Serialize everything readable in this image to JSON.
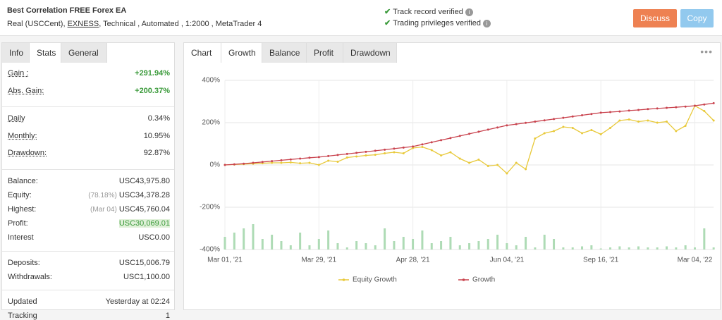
{
  "header": {
    "title": "Best Correlation FREE Forex EA",
    "subtitle_parts": [
      "Real (USCCent),",
      "EXNESS",
      ", Technical , Automated , 1:2000 , MetaTrader 4"
    ],
    "verified": [
      "Track record verified",
      "Trading privileges verified"
    ],
    "buttons": [
      "Discuss",
      "Copy"
    ]
  },
  "stats_tabs": [
    "Info",
    "Stats",
    "General"
  ],
  "stats": {
    "groups": [
      [
        {
          "label": "Gain :",
          "value": "+291.94%"
        },
        {
          "label": "Abs. Gain:",
          "value": "+200.37%"
        }
      ],
      [
        {
          "label": "Daily",
          "value": "0.34%"
        },
        {
          "label": "Monthly:",
          "value": "10.95%"
        },
        {
          "label": "Drawdown:",
          "value": "92.87%"
        }
      ],
      [
        {
          "label": "Balance:",
          "value": "USC43,975.80"
        },
        {
          "label": "Equity:",
          "note": "(78.18%)",
          "value": "USC34,378.28"
        },
        {
          "label": "Highest:",
          "note": "(Mar 04)",
          "value": "USC45,760.04"
        },
        {
          "label": "Profit:",
          "value": "USC30,069.01"
        },
        {
          "label": "Interest",
          "value": "USC0.00"
        }
      ],
      [
        {
          "label": "Deposits:",
          "value": "USC15,006.79"
        },
        {
          "label": "Withdrawals:",
          "value": "USC1,100.00"
        }
      ],
      [
        {
          "label": "Updated",
          "value": "Yesterday at 02:24"
        },
        {
          "label": "Tracking",
          "value": "1"
        }
      ]
    ]
  },
  "chart_tabs": [
    "Chart",
    "Growth",
    "Balance",
    "Profit",
    "Drawdown"
  ],
  "chart_data": {
    "type": "line",
    "categories": [
      "Mar 01, '21",
      null,
      null,
      null,
      null,
      null,
      null,
      null,
      null,
      null,
      "Mar 29, '21",
      null,
      null,
      null,
      null,
      null,
      null,
      null,
      null,
      null,
      "Apr 28, '21",
      null,
      null,
      null,
      null,
      null,
      null,
      null,
      null,
      null,
      "Jun 04, '21",
      null,
      null,
      null,
      null,
      null,
      null,
      null,
      null,
      null,
      "Sep 16, '21",
      null,
      null,
      null,
      null,
      null,
      null,
      null,
      null,
      null,
      "Mar 04, '22",
      null,
      null
    ],
    "ylim": [
      -400,
      400
    ],
    "yticks": [
      {
        "value": -400,
        "label": "-400%"
      },
      {
        "value": -200,
        "label": "-200%"
      },
      {
        "value": 0,
        "label": "0%"
      },
      {
        "value": 200,
        "label": "200%"
      },
      {
        "value": 400,
        "label": "400%"
      }
    ],
    "grid": true,
    "series": [
      {
        "name": "Equity Growth",
        "color": "#e8c93a",
        "values": [
          0,
          2,
          4,
          6,
          8,
          10,
          10,
          12,
          8,
          10,
          0,
          20,
          15,
          35,
          40,
          45,
          48,
          55,
          60,
          55,
          80,
          85,
          70,
          45,
          60,
          30,
          10,
          25,
          -5,
          0,
          -40,
          10,
          -20,
          125,
          150,
          160,
          180,
          175,
          150,
          165,
          145,
          175,
          210,
          215,
          205,
          210,
          200,
          205,
          160,
          185,
          280,
          255,
          210
        ]
      },
      {
        "name": "Growth",
        "color": "#c9434e",
        "values": [
          0,
          3,
          6,
          10,
          14,
          18,
          22,
          26,
          30,
          34,
          37,
          42,
          47,
          52,
          57,
          62,
          67,
          72,
          77,
          82,
          87,
          97,
          107,
          117,
          127,
          137,
          147,
          157,
          167,
          177,
          187,
          193,
          199,
          205,
          211,
          217,
          223,
          229,
          235,
          241,
          247,
          250,
          253,
          257,
          260,
          264,
          267,
          270,
          273,
          276,
          280,
          286,
          292
        ]
      }
    ],
    "bars": {
      "color": "#aedbb5",
      "values": [
        -340,
        -320,
        -300,
        -280,
        -350,
        -330,
        -360,
        -380,
        -320,
        -380,
        -350,
        -310,
        -370,
        -390,
        -360,
        -370,
        -380,
        -300,
        -360,
        -340,
        -350,
        -310,
        -370,
        -360,
        -340,
        -380,
        -370,
        -360,
        -350,
        -330,
        -370,
        -380,
        -340,
        -390,
        -330,
        -350,
        -390,
        -390,
        -385,
        -380,
        -395,
        -390,
        -385,
        -390,
        -385,
        -390,
        -390,
        -385,
        -390,
        -380,
        -390,
        -300,
        -390
      ]
    }
  }
}
